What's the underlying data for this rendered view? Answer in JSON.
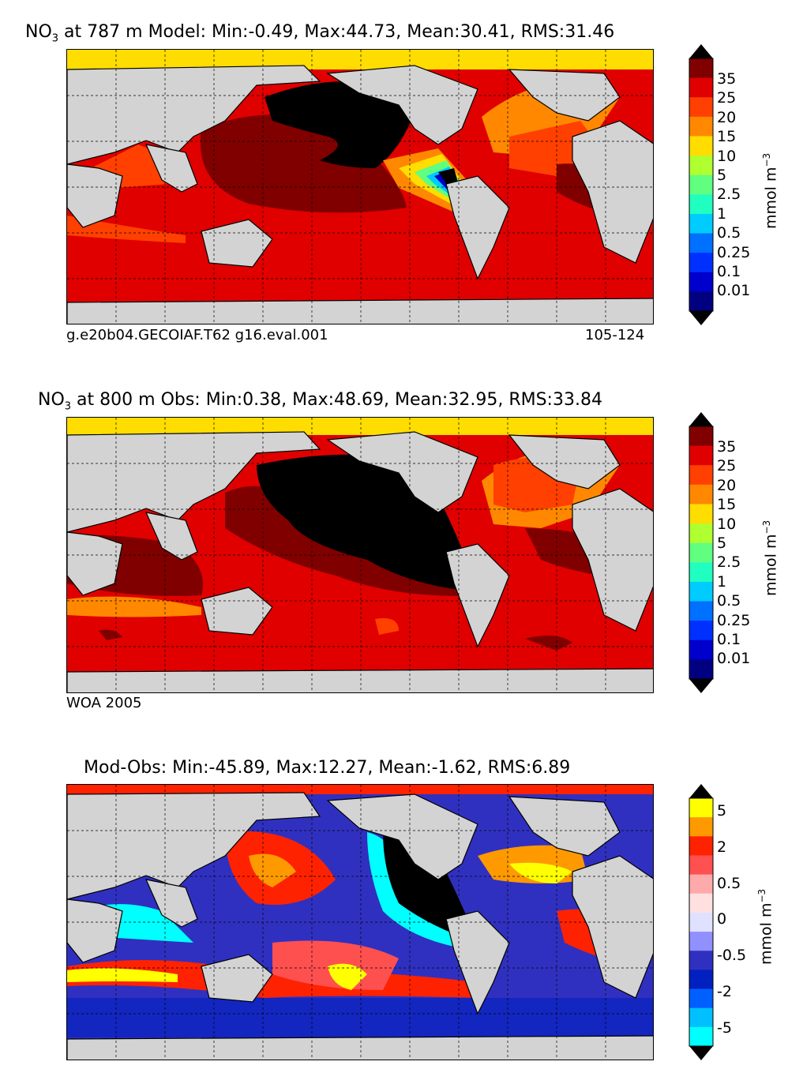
{
  "panels": [
    {
      "title_species": "NO",
      "title_sub": "3",
      "title_rest": " at 787 m Model: Min:-0.49, Max:44.73, Mean:30.41, RMS:31.46",
      "caption_left": "g.e20b04.GECOIAF.T62 g16.eval.001",
      "caption_right": "105-124",
      "colorbar_ticks": [
        "35",
        "25",
        "20",
        "15",
        "10",
        "5",
        "2.5",
        "1",
        "0.5",
        "0.25",
        "0.1",
        "0.01"
      ],
      "colorbar_colors": [
        "#800000",
        "#e00000",
        "#ff4000",
        "#ff8800",
        "#ffdd00",
        "#b0ff30",
        "#60ff80",
        "#20ffc0",
        "#00ccff",
        "#0070ff",
        "#0030ff",
        "#0000cc",
        "#000080"
      ],
      "unit": "mmol m",
      "unit_exp": "−3"
    },
    {
      "title_species": "NO",
      "title_sub": "3",
      "title_rest": " at 800 m Obs: Min:0.38, Max:48.69, Mean:32.95, RMS:33.84",
      "caption_left": "WOA 2005",
      "caption_right": "",
      "colorbar_ticks": [
        "35",
        "25",
        "20",
        "15",
        "10",
        "5",
        "2.5",
        "1",
        "0.5",
        "0.25",
        "0.1",
        "0.01"
      ],
      "colorbar_colors": [
        "#800000",
        "#e00000",
        "#ff4000",
        "#ff8800",
        "#ffdd00",
        "#b0ff30",
        "#60ff80",
        "#20ffc0",
        "#00ccff",
        "#0070ff",
        "#0030ff",
        "#0000cc",
        "#000080"
      ],
      "unit": "mmol m",
      "unit_exp": "−3"
    },
    {
      "title_species": "",
      "title_sub": "",
      "title_rest": "Mod-Obs: Min:-45.89, Max:12.27, Mean:-1.62, RMS:6.89",
      "caption_left": "",
      "caption_right": "",
      "colorbar_ticks": [
        "5",
        "2",
        "0.5",
        "0",
        "-0.5",
        "-2",
        "-5"
      ],
      "colorbar_colors": [
        "#ffff00",
        "#ff9900",
        "#ff2200",
        "#ff5050",
        "#ffaaaa",
        "#ffe0e0",
        "#e0e0ff",
        "#9090ff",
        "#3030c0",
        "#0020c0",
        "#0060ff",
        "#00c0ff",
        "#00ffff"
      ],
      "unit": "mmol m",
      "unit_exp": "−3"
    }
  ],
  "colors": {
    "land": "#d3d3d3",
    "ocean_model": "#e00000",
    "ocean_obs": "#e00000",
    "ocean_diff": "#3030c0",
    "arctic": "#ffdd00",
    "deep_pacific": "#000000",
    "outline": "#000000"
  }
}
